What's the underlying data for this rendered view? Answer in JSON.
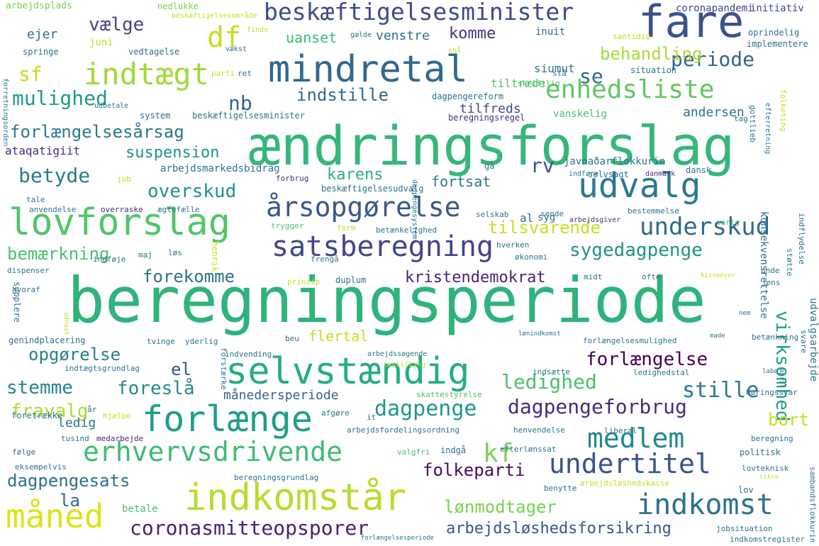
{
  "wordcloud": {
    "words": [
      {
        "text": "beregningsperiode",
        "color": "#2eb37c"
      },
      {
        "text": "ændringsforslag",
        "color": "#35b779"
      },
      {
        "text": "mindretal",
        "color": "#31688e"
      },
      {
        "text": "fare",
        "color": "#3b528b"
      },
      {
        "text": "selvstændig",
        "color": "#26ad81"
      },
      {
        "text": "lovforslag",
        "color": "#52c569"
      },
      {
        "text": "indkomstår",
        "color": "#b5de2b"
      },
      {
        "text": "forlænge",
        "color": "#1f9e89"
      },
      {
        "text": "udvalg",
        "color": "#2a788e"
      },
      {
        "text": "satsberegning",
        "color": "#404688"
      },
      {
        "text": "måned",
        "color": "#dde318"
      },
      {
        "text": "indtægt",
        "color": "#a0da39"
      },
      {
        "text": "årsopgørelse",
        "color": "#38588c"
      },
      {
        "text": "enhedsliste",
        "color": "#5ec962"
      },
      {
        "text": "erhvervsdrivende",
        "color": "#3dbc74"
      },
      {
        "text": "beskæftigelsesminister",
        "color": "#3e4a89"
      },
      {
        "text": "indkomst",
        "color": "#2c728e"
      },
      {
        "text": "undertitel",
        "color": "#3b528b"
      },
      {
        "text": "medlem",
        "color": "#24878e"
      },
      {
        "text": "underskud",
        "color": "#306a8e"
      },
      {
        "text": "dagpengeforbrug",
        "color": "#472c7a"
      },
      {
        "text": "coronasmitteopsporer",
        "color": "#481f70"
      },
      {
        "text": "df",
        "color": "#c2df23"
      },
      {
        "text": "sygedagpenge",
        "color": "#21918c"
      },
      {
        "text": "forlængelse",
        "color": "#440154"
      },
      {
        "text": "stille",
        "color": "#2a788e"
      },
      {
        "text": "dagpenge",
        "color": "#1f988b"
      },
      {
        "text": "mulighed",
        "color": "#1f9a8a"
      },
      {
        "text": "forlængelsesårsag",
        "color": "#2a788e"
      },
      {
        "text": "overskud",
        "color": "#21918c"
      },
      {
        "text": "kristendemokrat",
        "color": "#482475"
      },
      {
        "text": "periode",
        "color": "#33638d"
      },
      {
        "text": "opgørelse",
        "color": "#277f8e"
      },
      {
        "text": "stemme",
        "color": "#25838e"
      },
      {
        "text": "ledighed",
        "color": "#4ac16d"
      },
      {
        "text": "indstille",
        "color": "#31688e"
      },
      {
        "text": "dagpengesats",
        "color": "#2c728e"
      },
      {
        "text": "lønmodtager",
        "color": "#7ad151"
      },
      {
        "text": "folkeparti",
        "color": "#470d60"
      },
      {
        "text": "arbejdsløshedsforsikring",
        "color": "#39568c"
      },
      {
        "text": "foreslå",
        "color": "#23898e"
      },
      {
        "text": "forekomme",
        "color": "#2c728e"
      },
      {
        "text": "tilsvarende",
        "color": "#c8e020"
      },
      {
        "text": "bemærkning",
        "color": "#4ac16d"
      },
      {
        "text": "suspension",
        "color": "#20928c"
      },
      {
        "text": "betyde",
        "color": "#287c8e"
      },
      {
        "text": "fravalg",
        "color": "#b0dd2f"
      },
      {
        "text": "kf",
        "color": "#7ad151"
      },
      {
        "text": "sf",
        "color": "#c2df23"
      },
      {
        "text": "virksomhed",
        "color": "#1f9e89"
      },
      {
        "text": "behandling",
        "color": "#a8db34"
      },
      {
        "text": "karens",
        "color": "#29af7f"
      },
      {
        "text": "bort",
        "color": "#c2df23"
      },
      {
        "text": "komme",
        "color": "#46327e"
      },
      {
        "text": "fortsat",
        "color": "#2a788e"
      },
      {
        "text": "vælge",
        "color": "#3e4989"
      },
      {
        "text": "nb",
        "color": "#33638d"
      },
      {
        "text": "se",
        "color": "#31688e"
      },
      {
        "text": "rv",
        "color": "#3b528b"
      },
      {
        "text": "el",
        "color": "#3b528b"
      },
      {
        "text": "la",
        "color": "#31688e"
      },
      {
        "text": "flertal",
        "color": "#c2df23"
      },
      {
        "text": "månedersperiode",
        "color": "#33638d"
      },
      {
        "text": "uanset",
        "color": "#3aba76"
      },
      {
        "text": "venstre",
        "color": "#2c728e"
      },
      {
        "text": "tiltræde",
        "color": "#52c569"
      },
      {
        "text": "tilfreds",
        "color": "#3e4a89"
      },
      {
        "text": "andersen",
        "color": "#2c728e"
      },
      {
        "text": "vanskelig",
        "color": "#4ac16d"
      },
      {
        "text": "siumut",
        "color": "#2a788e"
      },
      {
        "text": "inuit",
        "color": "#31688e"
      },
      {
        "text": "ejer",
        "color": "#2c728e"
      },
      {
        "text": "juni",
        "color": "#c2df23"
      },
      {
        "text": "ledig",
        "color": "#2a788e"
      },
      {
        "text": "arbejdsmarkedsbidrag",
        "color": "#2c728e"
      },
      {
        "text": "javnaðarflokkurin",
        "color": "#2c728e"
      },
      {
        "text": "ataqatigiit",
        "color": "#472c7a"
      },
      {
        "text": "konsekvensrettelse",
        "color": "#2c728e"
      },
      {
        "text": "udvalgsarbejde",
        "color": "#2c728e"
      },
      {
        "text": "sambandsflokkurin",
        "color": "#2c728e"
      },
      {
        "text": "betale",
        "color": "#4ac16d"
      },
      {
        "text": "al",
        "color": "#2c728e"
      },
      {
        "text": "syg",
        "color": "#2c728e"
      },
      {
        "text": "arbejdsplads",
        "color": "#7ad151"
      },
      {
        "text": "nedlukke",
        "color": "#7ad151"
      },
      {
        "text": "beskæftigelsesområde",
        "color": "#c2df23"
      },
      {
        "text": "coronapandemi",
        "color": "#3e4a89"
      },
      {
        "text": "initiativ",
        "color": "#3e4a89"
      },
      {
        "text": "oprindelig",
        "color": "#2c728e"
      },
      {
        "text": "implementere",
        "color": "#2c728e"
      },
      {
        "text": "finde",
        "color": "#c2df23"
      },
      {
        "text": "gælde",
        "color": "#2c728e"
      },
      {
        "text": "santidig",
        "color": "#c2df23"
      },
      {
        "text": "springe",
        "color": "#2c728e"
      },
      {
        "text": "vedtagelse",
        "color": "#2c728e"
      },
      {
        "text": "vækst",
        "color": "#2c728e"
      },
      {
        "text": "snå",
        "color": "#c2df23"
      },
      {
        "text": "situation",
        "color": "#2c728e"
      },
      {
        "text": "parti",
        "color": "#c2df23"
      },
      {
        "text": "ret",
        "color": "#2c728e"
      },
      {
        "text": "skriftlig",
        "color": "#4ac16d"
      },
      {
        "text": "stå",
        "color": "#2c728e"
      },
      {
        "text": "forretningsorden",
        "color": "#2c728e"
      },
      {
        "text": "udbetale",
        "color": "#2c728e"
      },
      {
        "text": "dagpengereform",
        "color": "#2c728e"
      },
      {
        "text": "system",
        "color": "#2c728e"
      },
      {
        "text": "beskæftigelsesminister",
        "color": "#2c728e"
      },
      {
        "text": "beregningsregel",
        "color": "#472c7a"
      },
      {
        "text": "tag",
        "color": "#2c728e"
      },
      {
        "text": "gottlieb",
        "color": "#2c728e"
      },
      {
        "text": "efterretning",
        "color": "#2c728e"
      },
      {
        "text": "dagpengesystem",
        "color": "#2c728e"
      },
      {
        "text": "gå",
        "color": "#2c728e"
      },
      {
        "text": "selvsagt",
        "color": "#2c728e"
      },
      {
        "text": "dansk",
        "color": "#2c728e"
      },
      {
        "text": "indføre",
        "color": "#2c728e"
      },
      {
        "text": "danmark",
        "color": "#472c7a"
      },
      {
        "text": "folketing",
        "color": "#c2df23"
      },
      {
        "text": "job",
        "color": "#c2df23"
      },
      {
        "text": "beskæftigelsesudvalg",
        "color": "#2c728e"
      },
      {
        "text": "forbrug",
        "color": "#472c7a"
      },
      {
        "text": "tale",
        "color": "#2c728e"
      },
      {
        "text": "anvendelse",
        "color": "#2c728e"
      },
      {
        "text": "overraske",
        "color": "#472c7a"
      },
      {
        "text": "ægtefælle",
        "color": "#2c728e"
      },
      {
        "text": "selskab",
        "color": "#2c728e"
      },
      {
        "text": "sende",
        "color": "#2c728e"
      },
      {
        "text": "bestemmelse",
        "color": "#2c728e"
      },
      {
        "text": "varig",
        "color": "#4ac16d"
      },
      {
        "text": "trygger",
        "color": "#4ac16d"
      },
      {
        "text": "form",
        "color": "#c2df23"
      },
      {
        "text": "betænkelighed",
        "color": "#2c728e"
      },
      {
        "text": "arbejdsgiver",
        "color": "#472c7a"
      },
      {
        "text": "indflydelse",
        "color": "#2c728e"
      },
      {
        "text": "henrik",
        "color": "#c2df23"
      },
      {
        "text": "maj",
        "color": "#2c728e"
      },
      {
        "text": "løs",
        "color": "#2c728e"
      },
      {
        "text": "hverken",
        "color": "#2c728e"
      },
      {
        "text": "økonomi",
        "color": "#2c728e"
      },
      {
        "text": "frengå",
        "color": "#2c728e"
      },
      {
        "text": "dispenser",
        "color": "#2c728e"
      },
      {
        "text": "indføje",
        "color": "#2c728e"
      },
      {
        "text": "princip",
        "color": "#c2df23"
      },
      {
        "text": "duplum",
        "color": "#2c728e"
      },
      {
        "text": "midt",
        "color": "#2c728e"
      },
      {
        "text": "ofte",
        "color": "#2c728e"
      },
      {
        "text": "kissmeyer",
        "color": "#c2df23"
      },
      {
        "text": "støtte",
        "color": "#2c728e"
      },
      {
        "text": "unde",
        "color": "#2c728e"
      },
      {
        "text": "jens",
        "color": "#2c728e"
      },
      {
        "text": "hvoraf",
        "color": "#2c728e"
      },
      {
        "text": "supplere",
        "color": "#2c728e"
      },
      {
        "text": "udnust",
        "color": "#c2df23"
      },
      {
        "text": "nem",
        "color": "#2c728e"
      },
      {
        "text": "genindplacering",
        "color": "#2c728e"
      },
      {
        "text": "tvinge",
        "color": "#2c728e"
      },
      {
        "text": "yderlig",
        "color": "#2c728e"
      },
      {
        "text": "beu",
        "color": "#2c728e"
      },
      {
        "text": "lønindkomst",
        "color": "#2c728e"
      },
      {
        "text": "forlængelsesmulighed",
        "color": "#2c728e"
      },
      {
        "text": "made",
        "color": "#2c728e"
      },
      {
        "text": "betænkning",
        "color": "#2c728e"
      },
      {
        "text": "svare",
        "color": "#2c728e"
      },
      {
        "text": "indvending",
        "color": "#2c728e"
      },
      {
        "text": "arbejdssøgende",
        "color": "#2c728e"
      },
      {
        "text": "forstærke",
        "color": "#2c728e"
      },
      {
        "text": "indtægtsgrundlag",
        "color": "#2c728e"
      },
      {
        "text": "indsætte",
        "color": "#2c728e"
      },
      {
        "text": "instilling",
        "color": "#c2df23"
      },
      {
        "text": "ledighedstal",
        "color": "#2c728e"
      },
      {
        "text": "labe",
        "color": "#2c728e"
      },
      {
        "text": "april",
        "color": "#2c728e"
      },
      {
        "text": "høringssvar",
        "color": "#2c728e"
      },
      {
        "text": "skattestyrelse",
        "color": "#4ac16d"
      },
      {
        "text": "foretrække",
        "color": "#2c728e"
      },
      {
        "text": "år",
        "color": "#2c728e"
      },
      {
        "text": "hjælpe",
        "color": "#c2df23"
      },
      {
        "text": "afgøre",
        "color": "#2c728e"
      },
      {
        "text": "it",
        "color": "#2c728e"
      },
      {
        "text": "arbejdsfordelingsordning",
        "color": "#2c728e"
      },
      {
        "text": "henvendelse",
        "color": "#2c728e"
      },
      {
        "text": "liberal",
        "color": "#2c728e"
      },
      {
        "text": "beregning",
        "color": "#2c728e"
      },
      {
        "text": "tusind",
        "color": "#2c728e"
      },
      {
        "text": "medarbejde",
        "color": "#472c7a"
      },
      {
        "text": "indgå",
        "color": "#2c728e"
      },
      {
        "text": "efterlønssat",
        "color": "#2c728e"
      },
      {
        "text": "politisk",
        "color": "#2c728e"
      },
      {
        "text": "følge",
        "color": "#2c728e"
      },
      {
        "text": "valgfri",
        "color": "#4ac16d"
      },
      {
        "text": "eksempelvis",
        "color": "#2c728e"
      },
      {
        "text": "lovteknisk",
        "color": "#2c728e"
      },
      {
        "text": "sikre",
        "color": "#c2df23"
      },
      {
        "text": "beregningsgrundlag",
        "color": "#2c728e"
      },
      {
        "text": "benytte",
        "color": "#2c728e"
      },
      {
        "text": "arbejdsløshedskasse",
        "color": "#c2df23"
      },
      {
        "text": "lov",
        "color": "#2c728e"
      },
      {
        "text": "jobsituation",
        "color": "#2c728e"
      },
      {
        "text": "indkomstregister",
        "color": "#2c728e"
      },
      {
        "text": "forlængelsesperiode",
        "color": "#2c728e"
      }
    ]
  }
}
